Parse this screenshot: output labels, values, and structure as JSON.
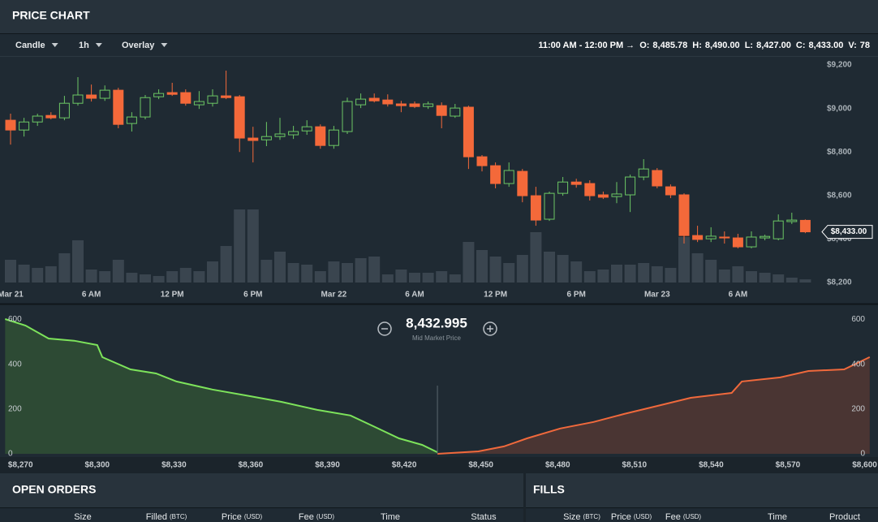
{
  "header": {
    "title": "PRICE CHART"
  },
  "toolbar": {
    "menus": [
      "Candle",
      "1h",
      "Overlay"
    ],
    "period": "11:00 AM - 12:00 PM →",
    "ohlcv": [
      {
        "key": "O:",
        "value": "8,485.78"
      },
      {
        "key": "H:",
        "value": "8,490.00"
      },
      {
        "key": "L:",
        "value": "8,427.00"
      },
      {
        "key": "C:",
        "value": "8,433.00"
      },
      {
        "key": "V:",
        "value": "78"
      }
    ]
  },
  "chart_data": [
    {
      "type": "candlestick",
      "categories": [
        "Mar 21",
        null,
        null,
        null,
        null,
        null,
        "6 AM",
        null,
        null,
        null,
        null,
        null,
        "12 PM",
        null,
        null,
        null,
        null,
        null,
        "6 PM",
        null,
        null,
        null,
        null,
        null,
        "Mar 22",
        null,
        null,
        null,
        null,
        null,
        "6 AM",
        null,
        null,
        null,
        null,
        null,
        "12 PM",
        null,
        null,
        null,
        null,
        null,
        "6 PM",
        null,
        null,
        null,
        null,
        null,
        "Mar 23",
        null,
        null,
        null,
        null,
        null,
        "6 AM",
        null,
        null,
        null,
        null,
        null
      ],
      "open": [
        8946,
        8901,
        8938,
        8968,
        8957,
        9024,
        9062,
        9047,
        9084,
        8931,
        8961,
        9054,
        9073,
        9073,
        9017,
        9024,
        9058,
        9054,
        8864,
        8856,
        8871,
        8879,
        8897,
        8916,
        8830,
        8894,
        9017,
        9047,
        9039,
        9021,
        9021,
        9009,
        9013,
        8965,
        9006,
        8778,
        8737,
        8655,
        8711,
        8599,
        8491,
        8610,
        8662,
        8655,
        8603,
        8595,
        8603,
        8685,
        8715,
        8640,
        8603,
        8416,
        8401,
        8409,
        8405,
        8364,
        8405,
        8401,
        8480,
        8485.78
      ],
      "high": [
        8976,
        8957,
        8976,
        8983,
        9058,
        9144,
        9110,
        9106,
        9095,
        8983,
        9062,
        9088,
        9118,
        9088,
        9080,
        9088,
        9174,
        9062,
        8916,
        8938,
        8957,
        8920,
        8946,
        8927,
        8920,
        9050,
        9069,
        9069,
        9065,
        9035,
        9032,
        9032,
        9028,
        9021,
        9013,
        8786,
        8752,
        8752,
        8722,
        8640,
        8618,
        8685,
        8677,
        8670,
        8618,
        8662,
        8696,
        8767,
        8726,
        8651,
        8610,
        8461,
        8454,
        8435,
        8424,
        8435,
        8420,
        8513,
        8521,
        8490
      ],
      "low": [
        8834,
        8871,
        8920,
        8950,
        8946,
        9013,
        9032,
        9035,
        8909,
        8894,
        8950,
        9043,
        9058,
        9013,
        8998,
        9009,
        9043,
        8800,
        8752,
        8827,
        8856,
        8860,
        8879,
        8815,
        8815,
        8883,
        9002,
        9028,
        9009,
        8983,
        9002,
        8998,
        8909,
        8957,
        8722,
        8711,
        8633,
        8640,
        8569,
        8461,
        8483,
        8599,
        8636,
        8577,
        8584,
        8565,
        8524,
        8670,
        8633,
        8588,
        8379,
        8386,
        8386,
        8379,
        8357,
        8357,
        8394,
        8394,
        8469,
        8427
      ],
      "close": [
        8901,
        8938,
        8965,
        8957,
        9024,
        9062,
        9047,
        9084,
        8927,
        8961,
        9050,
        9069,
        9065,
        9024,
        9032,
        9058,
        9050,
        8864,
        8853,
        8871,
        8883,
        8894,
        8916,
        8830,
        8901,
        9032,
        9043,
        9035,
        9021,
        9013,
        9009,
        9021,
        8968,
        9002,
        8778,
        8737,
        8655,
        8715,
        8599,
        8487,
        8610,
        8662,
        8651,
        8599,
        8592,
        8607,
        8685,
        8722,
        8644,
        8603,
        8416,
        8398,
        8413,
        8405,
        8364,
        8409,
        8412,
        8483,
        8487,
        8433
      ],
      "volume": [
        560,
        440,
        360,
        400,
        720,
        1040,
        320,
        280,
        560,
        240,
        200,
        160,
        280,
        360,
        280,
        520,
        900,
        1800,
        1800,
        560,
        760,
        480,
        440,
        280,
        520,
        480,
        600,
        640,
        200,
        320,
        240,
        240,
        280,
        200,
        1000,
        800,
        640,
        480,
        680,
        1240,
        760,
        680,
        520,
        280,
        320,
        440,
        440,
        480,
        400,
        360,
        1120,
        720,
        560,
        320,
        400,
        280,
        240,
        200,
        120,
        78
      ],
      "up_color": "#6cc764",
      "down_color": "#f4693a",
      "volume_color": "#3a454f",
      "ylim": [
        8200,
        9230
      ],
      "yticks": [
        {
          "value": 8200,
          "label": "$8,200"
        },
        {
          "value": 8400,
          "label": "$8,400"
        },
        {
          "value": 8600,
          "label": "$8,600"
        },
        {
          "value": 8800,
          "label": "$8,800"
        },
        {
          "value": 9000,
          "label": "$9,000"
        },
        {
          "value": 9200,
          "label": "$9,200"
        }
      ],
      "price_tag": {
        "value": 8433,
        "label": "$8,433.00"
      }
    },
    {
      "type": "area",
      "mid_price": {
        "value": 8432.995,
        "label": "8,432.995"
      },
      "mid_caption": "Mid Market Price",
      "series": [
        {
          "color": "#7de35b",
          "fill": "#2d4a34",
          "x": [
            8264,
            8272,
            8281,
            8291,
            8300,
            8302,
            8313,
            8323,
            8331,
            8345,
            8358,
            8372,
            8386,
            8399,
            8408,
            8418,
            8427,
            8433
          ],
          "values": [
            602,
            573,
            515,
            505,
            486,
            432,
            377,
            359,
            323,
            287,
            261,
            232,
            196,
            171,
            123,
            69,
            40,
            7
          ]
        },
        {
          "color": "#f0693c",
          "fill": "#4a3533",
          "x": [
            8433,
            8449,
            8459,
            8468,
            8481,
            8494,
            8506,
            8519,
            8532,
            8548,
            8552,
            8567,
            8578,
            8592,
            8602
          ],
          "values": [
            0,
            11,
            33,
            69,
            113,
            142,
            178,
            214,
            250,
            272,
            323,
            341,
            370,
            377,
            432
          ]
        }
      ],
      "xlim": [
        8262,
        8603
      ],
      "ylim": [
        0,
        620
      ],
      "xticks": [
        {
          "value": 8270,
          "label": "$8,270"
        },
        {
          "value": 8300,
          "label": "$8,300"
        },
        {
          "value": 8330,
          "label": "$8,330"
        },
        {
          "value": 8360,
          "label": "$8,360"
        },
        {
          "value": 8390,
          "label": "$8,390"
        },
        {
          "value": 8420,
          "label": "$8,420"
        },
        {
          "value": 8450,
          "label": "$8,450"
        },
        {
          "value": 8480,
          "label": "$8,480"
        },
        {
          "value": 8510,
          "label": "$8,510"
        },
        {
          "value": 8540,
          "label": "$8,540"
        },
        {
          "value": 8570,
          "label": "$8,570"
        },
        {
          "value": 8600,
          "label": "$8,600"
        }
      ],
      "yticks": [
        0,
        200,
        400,
        600
      ]
    }
  ],
  "open_orders": {
    "title": "OPEN ORDERS",
    "columns": [
      {
        "label": "Size"
      },
      {
        "label": "Filled",
        "unit": "(BTC)"
      },
      {
        "label": "Price",
        "unit": "(USD)"
      },
      {
        "label": "Fee",
        "unit": "(USD)"
      },
      {
        "label": "Time"
      },
      {
        "label": "Status"
      }
    ]
  },
  "fills": {
    "title": "FILLS",
    "columns": [
      {
        "label": "Size",
        "unit": "(BTC)"
      },
      {
        "label": "Price",
        "unit": "(USD)"
      },
      {
        "label": "Fee",
        "unit": "(USD)"
      },
      {
        "label": "Time"
      },
      {
        "label": "Product"
      }
    ]
  }
}
